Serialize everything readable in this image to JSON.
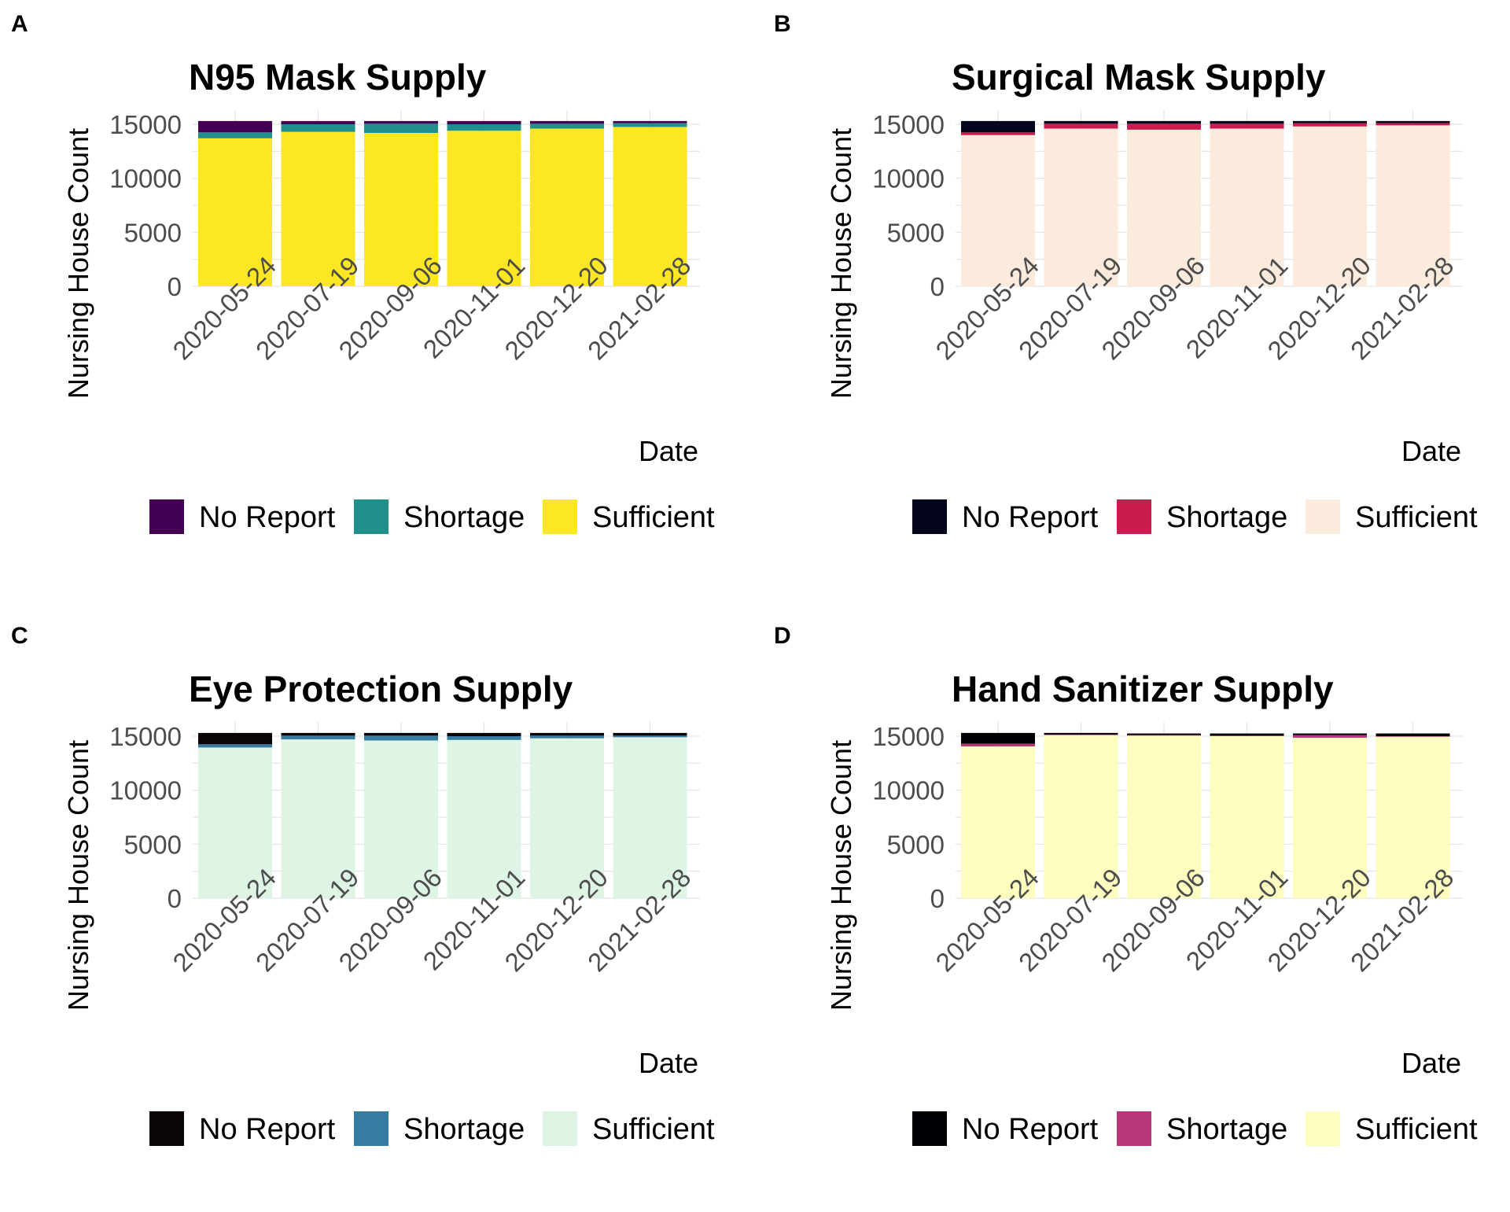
{
  "chart_data": [
    {
      "panel": "A",
      "type": "bar",
      "stacked": true,
      "title": "N95 Mask Supply",
      "xlabel": "Date",
      "ylabel": "Nursing House Count",
      "ylim": [
        0,
        16000
      ],
      "yticks": [
        0,
        5000,
        10000,
        15000
      ],
      "categories": [
        "2020-05-24",
        "2020-07-19",
        "2020-09-06",
        "2020-11-01",
        "2020-12-20",
        "2021-02-28"
      ],
      "series": [
        {
          "name": "Sufficient",
          "color": "#FDE725",
          "values": [
            13700,
            14300,
            14200,
            14400,
            14600,
            14750
          ]
        },
        {
          "name": "Shortage",
          "color": "#21908C",
          "values": [
            550,
            700,
            850,
            600,
            450,
            350
          ]
        },
        {
          "name": "No Report",
          "color": "#440154",
          "values": [
            1050,
            300,
            250,
            300,
            250,
            200
          ]
        }
      ],
      "legend": "bottom"
    },
    {
      "panel": "B",
      "type": "bar",
      "stacked": true,
      "title": "Surgical Mask Supply",
      "xlabel": "Date",
      "ylabel": "Nursing House Count",
      "ylim": [
        0,
        16000
      ],
      "yticks": [
        0,
        5000,
        10000,
        15000
      ],
      "categories": [
        "2020-05-24",
        "2020-07-19",
        "2020-09-06",
        "2020-11-01",
        "2020-12-20",
        "2021-02-28"
      ],
      "series": [
        {
          "name": "Sufficient",
          "color": "#FAEBDD",
          "values": [
            14000,
            14600,
            14500,
            14600,
            14800,
            14900
          ]
        },
        {
          "name": "Shortage",
          "color": "#CB1B4F",
          "values": [
            250,
            450,
            550,
            450,
            300,
            200
          ]
        },
        {
          "name": "No Report",
          "color": "#03051A",
          "values": [
            1050,
            250,
            250,
            250,
            200,
            200
          ]
        }
      ],
      "legend": "bottom"
    },
    {
      "panel": "C",
      "type": "bar",
      "stacked": true,
      "title": "Eye Protection Supply",
      "xlabel": "Date",
      "ylabel": "Nursing House Count",
      "ylim": [
        0,
        16000
      ],
      "yticks": [
        0,
        5000,
        10000,
        15000
      ],
      "categories": [
        "2020-05-24",
        "2020-07-19",
        "2020-09-06",
        "2020-11-01",
        "2020-12-20",
        "2021-02-28"
      ],
      "series": [
        {
          "name": "Sufficient",
          "color": "#DEF5E5",
          "values": [
            13950,
            14700,
            14600,
            14650,
            14800,
            14900
          ]
        },
        {
          "name": "Shortage",
          "color": "#357BA2",
          "values": [
            300,
            350,
            450,
            350,
            250,
            150
          ]
        },
        {
          "name": "No Report",
          "color": "#0B0405",
          "values": [
            1050,
            250,
            250,
            300,
            250,
            250
          ]
        }
      ],
      "legend": "bottom"
    },
    {
      "panel": "D",
      "type": "bar",
      "stacked": true,
      "title": "Hand Sanitizer Supply",
      "xlabel": "Date",
      "ylabel": "Nursing House Count",
      "ylim": [
        0,
        16000
      ],
      "yticks": [
        0,
        5000,
        10000,
        15000
      ],
      "categories": [
        "2020-05-24",
        "2020-07-19",
        "2020-09-06",
        "2020-11-01",
        "2020-12-20",
        "2021-02-28"
      ],
      "series": [
        {
          "name": "Sufficient",
          "color": "#FCFDBF",
          "values": [
            14050,
            15100,
            15050,
            15000,
            14850,
            14950
          ]
        },
        {
          "name": "Shortage",
          "color": "#B73779",
          "values": [
            250,
            50,
            50,
            50,
            250,
            50
          ]
        },
        {
          "name": "No Report",
          "color": "#000004",
          "values": [
            1000,
            150,
            150,
            200,
            150,
            250
          ]
        }
      ],
      "legend": "bottom"
    }
  ]
}
